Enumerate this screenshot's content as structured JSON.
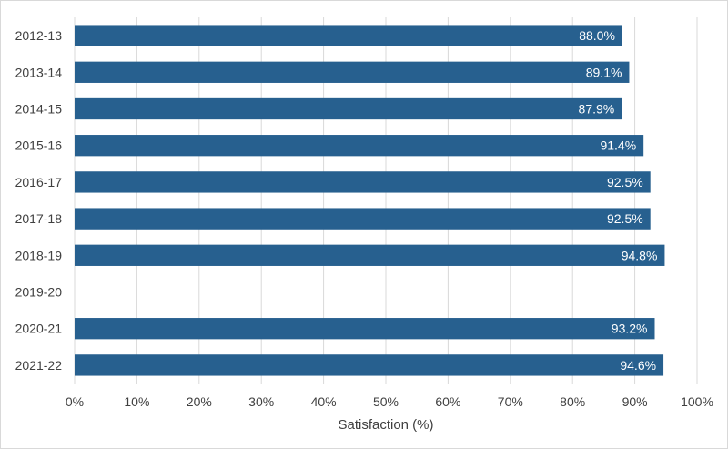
{
  "chart_data": {
    "type": "bar",
    "orientation": "horizontal",
    "categories": [
      "2012-13",
      "2013-14",
      "2014-15",
      "2015-16",
      "2016-17",
      "2017-18",
      "2018-19",
      "2019-20",
      "2020-21",
      "2021-22"
    ],
    "values": [
      88.0,
      89.1,
      87.9,
      91.4,
      92.5,
      92.5,
      94.8,
      null,
      93.2,
      94.6
    ],
    "data_labels": [
      "88.0%",
      "89.1%",
      "87.9%",
      "91.4%",
      "92.5%",
      "92.5%",
      "94.8%",
      "",
      "93.2%",
      "94.6%"
    ],
    "xlabel": "Satisfaction (%)",
    "ylabel": "",
    "xlim": [
      0,
      100
    ],
    "x_ticks": [
      0,
      10,
      20,
      30,
      40,
      50,
      60,
      70,
      80,
      90,
      100
    ],
    "x_tick_labels": [
      "0%",
      "10%",
      "20%",
      "30%",
      "40%",
      "50%",
      "60%",
      "70%",
      "80%",
      "90%",
      "100%"
    ],
    "grid": "vertical",
    "legend": "none",
    "colors": {
      "bar": "#27608f",
      "grid": "#d9d9d9",
      "text": "#404040",
      "label": "#ffffff"
    }
  }
}
